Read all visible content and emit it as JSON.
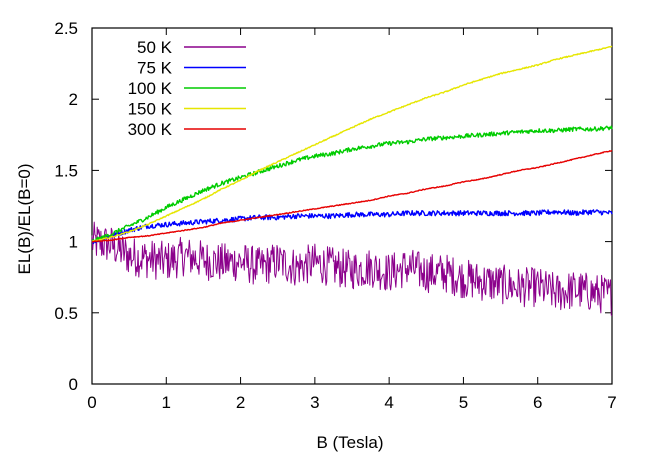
{
  "chart_data": {
    "type": "line",
    "xlabel": "B (Tesla)",
    "ylabel": "EL(B)/EL(B=0)",
    "xlim": [
      0,
      7
    ],
    "ylim": [
      0,
      2.5
    ],
    "x_ticks": [
      "0",
      "1",
      "2",
      "3",
      "4",
      "5",
      "6",
      "7"
    ],
    "y_ticks": [
      "0",
      "0.5",
      "1",
      "1.5",
      "2",
      "2.5"
    ],
    "grid": false,
    "legend_position": "top-left",
    "series": [
      {
        "name": "50 K",
        "color": "#8b008b",
        "x": [
          0,
          0.25,
          0.5,
          0.75,
          1,
          1.25,
          1.5,
          1.75,
          2,
          2.25,
          2.5,
          2.75,
          3,
          3.25,
          3.5,
          3.75,
          4,
          4.25,
          4.5,
          4.75,
          5,
          5.25,
          5.5,
          5.75,
          6,
          6.25,
          6.5,
          6.75,
          7
        ],
        "y": [
          1.0,
          0.98,
          0.9,
          0.88,
          0.86,
          0.9,
          0.87,
          0.85,
          0.86,
          0.82,
          0.86,
          0.82,
          0.85,
          0.82,
          0.8,
          0.82,
          0.78,
          0.82,
          0.78,
          0.78,
          0.74,
          0.72,
          0.7,
          0.68,
          0.68,
          0.64,
          0.66,
          0.64,
          0.62
        ]
      },
      {
        "name": "75 K",
        "color": "#0000ff",
        "x": [
          0,
          0.25,
          0.5,
          0.75,
          1,
          1.25,
          1.5,
          1.75,
          2,
          2.25,
          2.5,
          2.75,
          3,
          3.25,
          3.5,
          3.75,
          4,
          4.25,
          4.5,
          4.75,
          5,
          5.25,
          5.5,
          5.75,
          6,
          6.25,
          6.5,
          6.75,
          7
        ],
        "y": [
          1.0,
          1.04,
          1.08,
          1.11,
          1.12,
          1.13,
          1.14,
          1.15,
          1.16,
          1.17,
          1.17,
          1.18,
          1.18,
          1.18,
          1.19,
          1.19,
          1.19,
          1.2,
          1.2,
          1.2,
          1.2,
          1.2,
          1.2,
          1.2,
          1.2,
          1.21,
          1.2,
          1.21,
          1.2
        ]
      },
      {
        "name": "100 K",
        "color": "#00cc00",
        "x": [
          0,
          0.25,
          0.5,
          0.75,
          1,
          1.25,
          1.5,
          1.75,
          2,
          2.25,
          2.5,
          2.75,
          3,
          3.25,
          3.5,
          3.75,
          4,
          4.25,
          4.5,
          4.75,
          5,
          5.25,
          5.5,
          5.75,
          6,
          6.25,
          6.5,
          6.75,
          7
        ],
        "y": [
          1.0,
          1.05,
          1.11,
          1.17,
          1.24,
          1.3,
          1.36,
          1.41,
          1.45,
          1.49,
          1.53,
          1.57,
          1.6,
          1.62,
          1.65,
          1.67,
          1.69,
          1.7,
          1.72,
          1.73,
          1.74,
          1.75,
          1.76,
          1.77,
          1.78,
          1.78,
          1.79,
          1.79,
          1.8
        ]
      },
      {
        "name": "150 K",
        "color": "#e6e600",
        "x": [
          0,
          0.25,
          0.5,
          0.75,
          1,
          1.25,
          1.5,
          1.75,
          2,
          2.25,
          2.5,
          2.75,
          3,
          3.25,
          3.5,
          3.75,
          4,
          4.25,
          4.5,
          4.75,
          5,
          5.25,
          5.5,
          5.75,
          6,
          6.25,
          6.5,
          6.75,
          7
        ],
        "y": [
          1.0,
          1.03,
          1.07,
          1.12,
          1.18,
          1.24,
          1.3,
          1.37,
          1.43,
          1.5,
          1.56,
          1.62,
          1.68,
          1.74,
          1.8,
          1.86,
          1.91,
          1.96,
          2.01,
          2.05,
          2.1,
          2.14,
          2.18,
          2.21,
          2.24,
          2.28,
          2.31,
          2.34,
          2.37
        ]
      },
      {
        "name": "300 K",
        "color": "#e60000",
        "x": [
          0,
          0.25,
          0.5,
          0.75,
          1,
          1.25,
          1.5,
          1.75,
          2,
          2.25,
          2.5,
          2.75,
          3,
          3.25,
          3.5,
          3.75,
          4,
          4.25,
          4.5,
          4.75,
          5,
          5.25,
          5.5,
          5.75,
          6,
          6.25,
          6.5,
          6.75,
          7
        ],
        "y": [
          1.0,
          1.01,
          1.03,
          1.04,
          1.06,
          1.08,
          1.1,
          1.13,
          1.15,
          1.17,
          1.19,
          1.21,
          1.23,
          1.25,
          1.27,
          1.29,
          1.32,
          1.34,
          1.37,
          1.39,
          1.42,
          1.44,
          1.47,
          1.5,
          1.52,
          1.55,
          1.58,
          1.61,
          1.64
        ]
      }
    ]
  }
}
